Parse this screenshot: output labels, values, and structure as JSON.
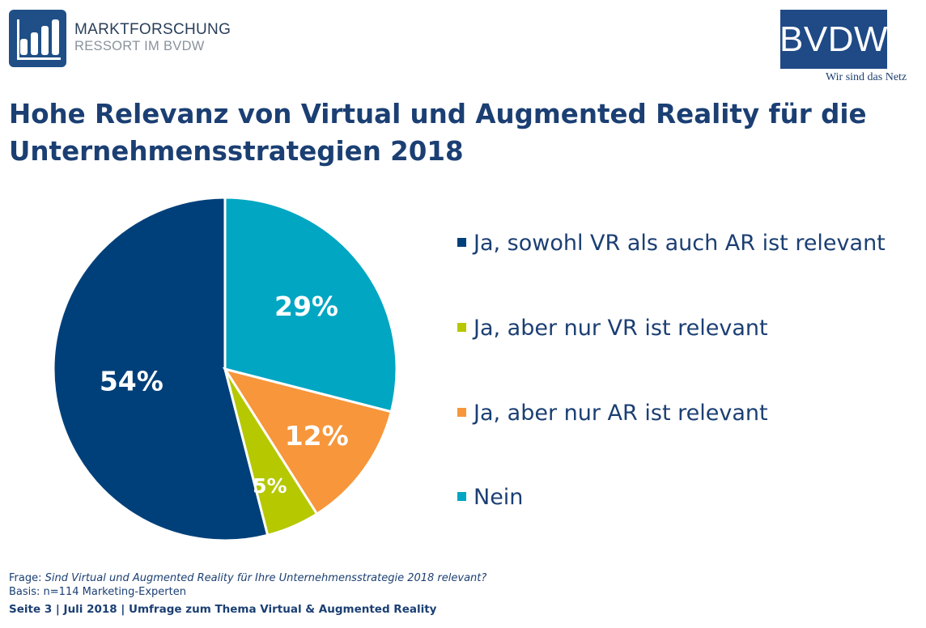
{
  "header": {
    "logo_line1": "MARKTFORSCHUNG",
    "logo_line2": "RESSORT IM BVDW",
    "brand": "BVDW",
    "tagline": "Wir sind das Netz"
  },
  "title": "Hohe Relevanz von Virtual und Augmented Reality für die Unternehmensstrategien 2018",
  "chart_data": {
    "type": "pie",
    "start_angle_deg": 90,
    "direction": "counterclockwise",
    "slices": [
      {
        "label": "Ja, sowohl VR als auch AR ist relevant",
        "value": 54,
        "display": "54%",
        "color": "#00407a"
      },
      {
        "label": "Ja, aber nur VR ist relevant",
        "value": 5,
        "display": "5%",
        "color": "#b5c800"
      },
      {
        "label": "Ja, aber nur AR ist relevant",
        "value": 12,
        "display": "12%",
        "color": "#f7963b"
      },
      {
        "label": "Nein",
        "value": 29,
        "display": "29%",
        "color": "#00a6c2"
      }
    ],
    "legend_position": "right"
  },
  "footer": {
    "question_label": "Frage: ",
    "question_text": "Sind Virtual und Augmented Reality für Ihre Unternehmensstrategie 2018 relevant?",
    "basis": "Basis: n=114 Marketing-Experten",
    "source_line": "Seite 3 | Juli 2018 | Umfrage zum Thema Virtual & Augmented Reality"
  }
}
